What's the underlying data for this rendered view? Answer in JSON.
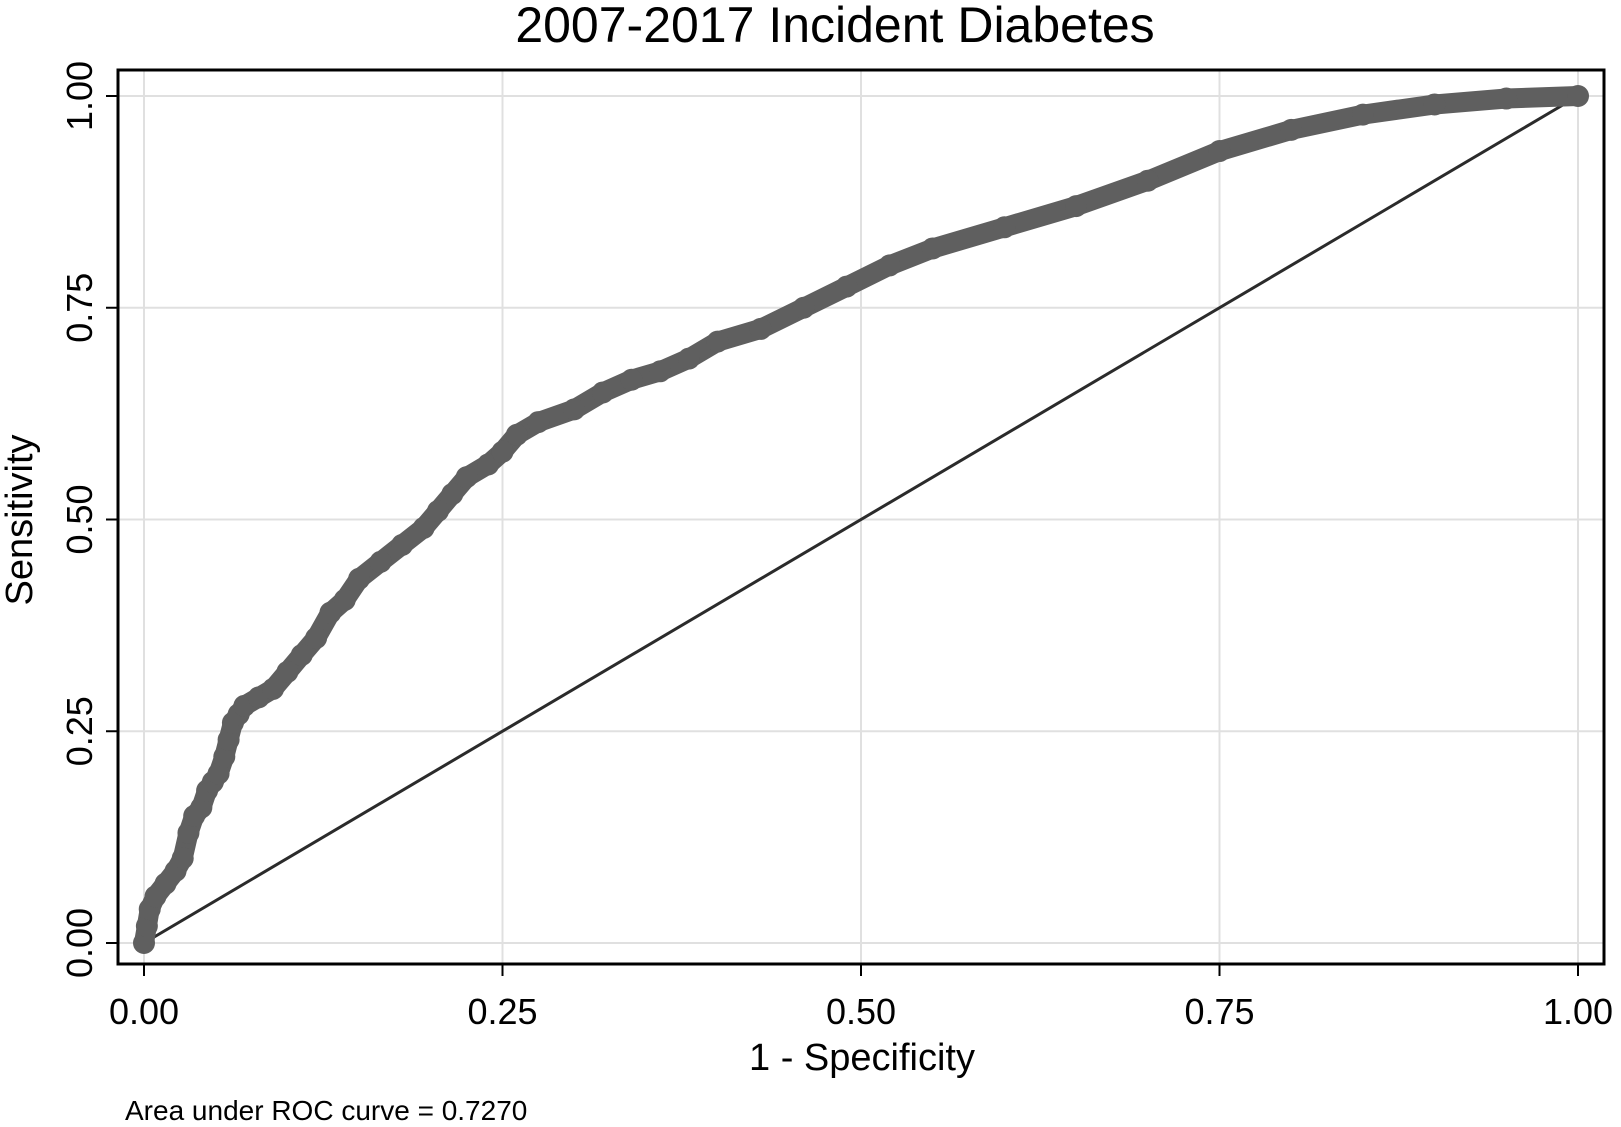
{
  "chart_data": {
    "type": "line",
    "title": "2007-2017 Incident Diabetes",
    "xlabel": "1 - Specificity",
    "ylabel": "Sensitivity",
    "xlim": [
      0,
      1
    ],
    "ylim": [
      0,
      1
    ],
    "x_ticks": [
      "0.00",
      "0.25",
      "0.50",
      "0.75",
      "1.00"
    ],
    "y_ticks": [
      "0.00",
      "0.25",
      "0.50",
      "0.75",
      "1.00"
    ],
    "grid": true,
    "legend": "none",
    "annotation": "Area under ROC curve = 0.7270",
    "colors": {
      "curve": "#5f5f5f",
      "reference": "#2b2b2b",
      "grid": "#e0e0e0",
      "frame": "#000000"
    },
    "series": [
      {
        "values": [
          [
            0.0,
            0.0
          ],
          [
            0.002,
            0.02
          ],
          [
            0.004,
            0.04
          ],
          [
            0.008,
            0.055
          ],
          [
            0.015,
            0.07
          ],
          [
            0.022,
            0.085
          ],
          [
            0.027,
            0.1
          ],
          [
            0.031,
            0.13
          ],
          [
            0.035,
            0.15
          ],
          [
            0.04,
            0.16
          ],
          [
            0.044,
            0.18
          ],
          [
            0.048,
            0.19
          ],
          [
            0.052,
            0.2
          ],
          [
            0.056,
            0.22
          ],
          [
            0.059,
            0.24
          ],
          [
            0.062,
            0.26
          ],
          [
            0.066,
            0.27
          ],
          [
            0.07,
            0.28
          ],
          [
            0.08,
            0.29
          ],
          [
            0.09,
            0.3
          ],
          [
            0.1,
            0.32
          ],
          [
            0.11,
            0.34
          ],
          [
            0.12,
            0.36
          ],
          [
            0.13,
            0.39
          ],
          [
            0.14,
            0.405
          ],
          [
            0.15,
            0.43
          ],
          [
            0.165,
            0.45
          ],
          [
            0.18,
            0.47
          ],
          [
            0.195,
            0.49
          ],
          [
            0.205,
            0.51
          ],
          [
            0.215,
            0.53
          ],
          [
            0.225,
            0.55
          ],
          [
            0.24,
            0.565
          ],
          [
            0.25,
            0.58
          ],
          [
            0.26,
            0.6
          ],
          [
            0.275,
            0.615
          ],
          [
            0.3,
            0.63
          ],
          [
            0.32,
            0.65
          ],
          [
            0.34,
            0.665
          ],
          [
            0.36,
            0.675
          ],
          [
            0.38,
            0.69
          ],
          [
            0.4,
            0.71
          ],
          [
            0.43,
            0.725
          ],
          [
            0.46,
            0.75
          ],
          [
            0.49,
            0.775
          ],
          [
            0.52,
            0.8
          ],
          [
            0.55,
            0.82
          ],
          [
            0.6,
            0.845
          ],
          [
            0.65,
            0.87
          ],
          [
            0.7,
            0.9
          ],
          [
            0.75,
            0.935
          ],
          [
            0.8,
            0.96
          ],
          [
            0.85,
            0.978
          ],
          [
            0.9,
            0.99
          ],
          [
            0.95,
            0.997
          ],
          [
            1.0,
            1.0
          ]
        ]
      },
      {
        "values": [
          [
            0,
            0
          ],
          [
            1,
            1
          ]
        ]
      }
    ]
  }
}
